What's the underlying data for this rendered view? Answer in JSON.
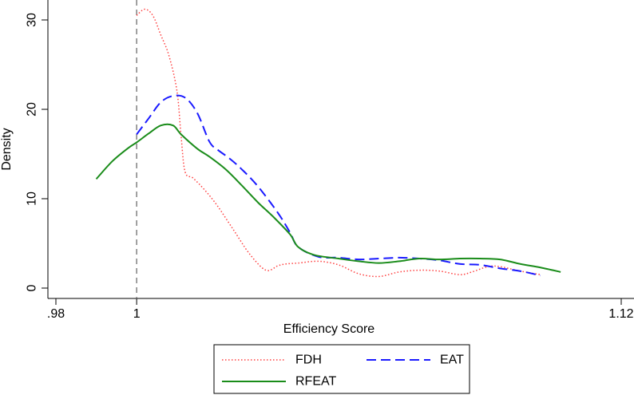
{
  "chart_data": {
    "type": "line",
    "title": "",
    "xlabel": "Efficiency Score",
    "ylabel": "Density",
    "xlim": [
      0.98,
      1.12
    ],
    "ylim": [
      0,
      30
    ],
    "x_ticks": [
      {
        "value": 0.98,
        "label": ".98"
      },
      {
        "value": 1.0,
        "label": "1"
      },
      {
        "value": 1.12,
        "label": "1.12"
      }
    ],
    "y_ticks": [
      {
        "value": 0,
        "label": "0"
      },
      {
        "value": 10,
        "label": "10"
      },
      {
        "value": 20,
        "label": "20"
      },
      {
        "value": 30,
        "label": "30"
      }
    ],
    "reference_line": {
      "x": 1.0,
      "style": "dashed",
      "color": "#808080"
    },
    "grid": false,
    "legend": {
      "placement": "bottom"
    },
    "series": [
      {
        "name": "FDH",
        "color": "#ff4040",
        "style": "dotted",
        "x": [
          1.0,
          1.002,
          1.004,
          1.006,
          1.008,
          1.01,
          1.011,
          1.012,
          1.014,
          1.017,
          1.02,
          1.024,
          1.028,
          1.032,
          1.035,
          1.037,
          1.04,
          1.045,
          1.05,
          1.055,
          1.06,
          1.065,
          1.07,
          1.075,
          1.08,
          1.083,
          1.087,
          1.09,
          1.095,
          1.1
        ],
        "y": [
          30.5,
          31.2,
          30.5,
          28.3,
          26.0,
          22.0,
          17.0,
          13.0,
          12.3,
          10.9,
          9.2,
          6.5,
          3.8,
          2.0,
          2.5,
          2.7,
          2.8,
          3.0,
          2.6,
          1.6,
          1.3,
          1.8,
          2.0,
          1.9,
          1.5,
          1.8,
          2.4,
          2.4,
          1.9,
          1.5
        ]
      },
      {
        "name": "EAT",
        "color": "#1a1aff",
        "style": "dashed",
        "x": [
          1.0,
          1.003,
          1.006,
          1.009,
          1.012,
          1.015,
          1.018,
          1.02,
          1.023,
          1.026,
          1.03,
          1.035,
          1.038,
          1.04,
          1.045,
          1.05,
          1.055,
          1.06,
          1.065,
          1.07,
          1.075,
          1.08,
          1.085,
          1.09,
          1.095,
          1.1
        ],
        "y": [
          17.2,
          19.0,
          20.8,
          21.5,
          21.3,
          19.6,
          16.4,
          15.5,
          14.5,
          13.3,
          11.4,
          8.4,
          6.2,
          4.6,
          3.5,
          3.4,
          3.2,
          3.3,
          3.4,
          3.3,
          3.1,
          2.7,
          2.6,
          2.2,
          1.9,
          1.4
        ]
      },
      {
        "name": "RFEAT",
        "color": "#1a8c1a",
        "style": "solid",
        "x": [
          0.99,
          0.994,
          0.998,
          1.0,
          1.003,
          1.006,
          1.009,
          1.011,
          1.015,
          1.018,
          1.022,
          1.026,
          1.03,
          1.034,
          1.038,
          1.04,
          1.044,
          1.05,
          1.055,
          1.06,
          1.065,
          1.07,
          1.075,
          1.08,
          1.085,
          1.09,
          1.095,
          1.1,
          1.105
        ],
        "y": [
          12.2,
          14.2,
          15.7,
          16.3,
          17.3,
          18.2,
          18.2,
          17.2,
          15.6,
          14.7,
          13.3,
          11.5,
          9.6,
          7.9,
          6.0,
          4.6,
          3.7,
          3.3,
          3.0,
          2.8,
          3.0,
          3.3,
          3.2,
          3.3,
          3.3,
          3.2,
          2.7,
          2.3,
          1.8
        ]
      }
    ]
  }
}
